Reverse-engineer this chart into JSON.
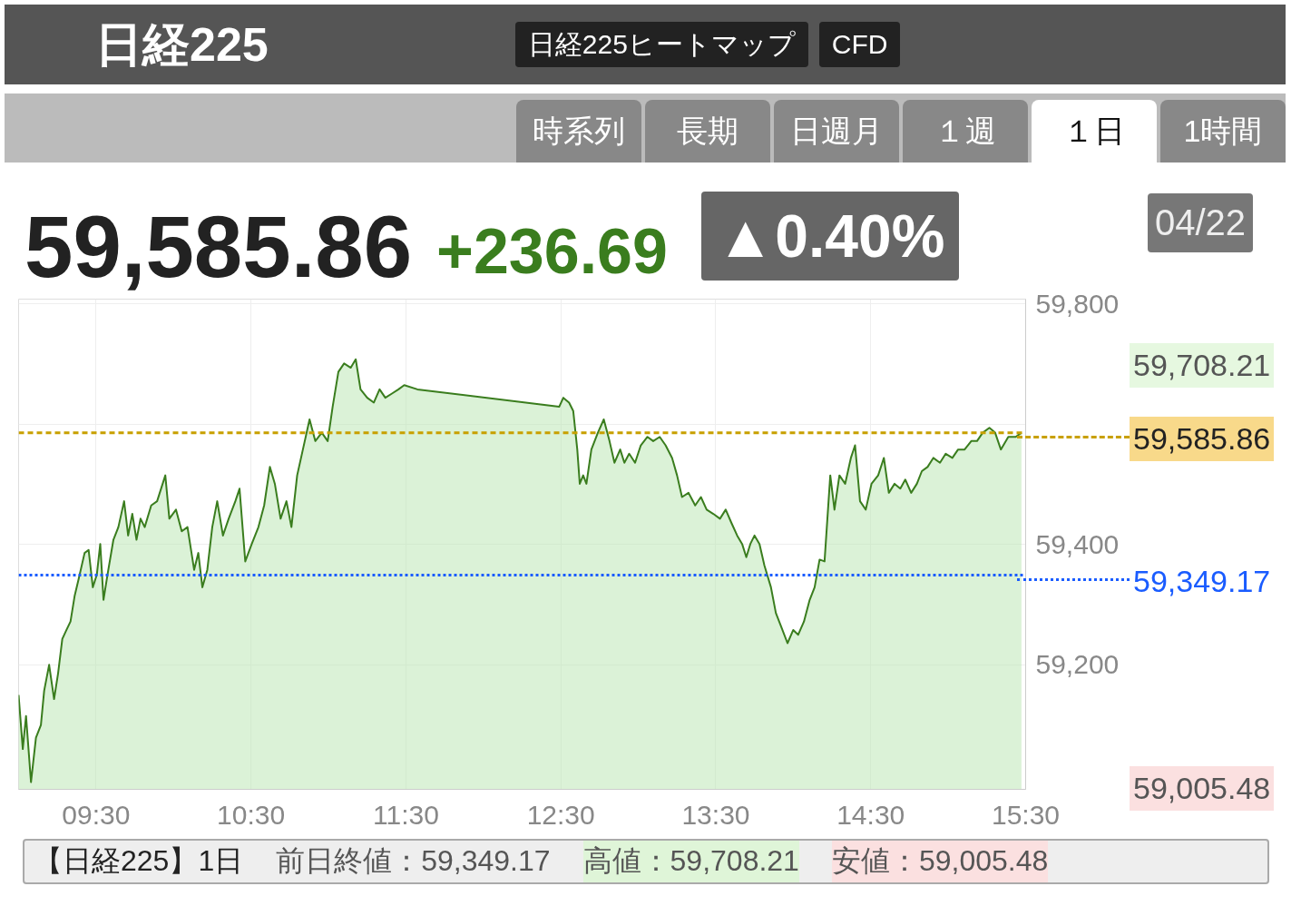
{
  "chart_data": {
    "type": "area",
    "title": "日経225",
    "annotations": [
      "日経225ヒートマップ",
      "CFD",
      "時系列",
      "長期",
      "日週月",
      "１週",
      "１日",
      "1時間",
      "59,585.86",
      "+236.69",
      "▲0.40%",
      "04/22",
      "【日経225】1日",
      "前日終値：59,349.17",
      "高値：59,708.21",
      "安値：59,005.48",
      "59,708.21",
      "59,005.48"
    ],
    "series": [
      {
        "color": "#3a7d1e",
        "x": [
          9.0,
          9.027,
          9.048,
          9.08,
          9.112,
          9.144,
          9.165,
          9.197,
          9.229,
          9.255,
          9.282,
          9.309,
          9.335,
          9.362,
          9.388,
          9.426,
          9.452,
          9.479,
          9.505,
          9.527,
          9.548,
          9.574,
          9.612,
          9.644,
          9.681,
          9.707,
          9.734,
          9.761,
          9.787,
          9.814,
          9.856,
          9.894,
          9.947,
          9.973,
          10.016,
          10.053,
          10.09,
          10.133,
          10.16,
          10.186,
          10.218,
          10.25,
          10.282,
          10.319,
          10.356,
          10.399,
          10.426,
          10.463,
          10.505,
          10.548,
          10.585,
          10.622,
          10.654,
          10.691,
          10.729,
          10.761,
          10.798,
          10.835,
          10.878,
          10.915,
          10.957,
          10.995,
          11.027,
          11.064,
          11.101,
          11.144,
          11.176,
          11.207,
          11.25,
          11.293,
          11.33,
          11.367,
          11.41,
          11.452,
          11.489,
          11.574,
          12.489,
          12.516,
          12.553,
          12.58,
          12.606,
          12.622,
          12.644,
          12.665,
          12.697,
          12.739,
          12.777,
          12.814,
          12.846,
          12.883,
          12.91,
          12.941,
          12.979,
          13.016,
          13.059,
          13.096,
          13.138,
          13.176,
          13.218,
          13.25,
          13.282,
          13.324,
          13.367,
          13.404,
          13.441,
          13.484,
          13.527,
          13.564,
          13.601,
          13.638,
          13.67,
          13.697,
          13.723,
          13.75,
          13.782,
          13.814,
          13.856,
          13.888,
          13.92,
          13.963,
          14.0,
          14.032,
          14.069,
          14.106,
          14.138,
          14.17,
          14.202,
          14.239,
          14.266,
          14.298,
          14.335,
          14.372,
          14.399,
          14.431,
          14.468,
          14.505,
          14.548,
          14.585,
          14.617,
          14.654,
          14.691,
          14.723,
          14.761,
          14.798,
          14.83,
          14.867,
          14.904,
          14.947,
          14.984,
          15.027,
          15.064,
          15.106,
          15.149,
          15.186,
          15.223,
          15.266,
          15.303,
          15.34,
          15.388,
          15.436,
          15.473
        ],
        "values": [
          59150,
          59060,
          59115,
          59005,
          59079,
          59100,
          59157,
          59200,
          59143,
          59186,
          59243,
          59258,
          59272,
          59315,
          59343,
          59386,
          59391,
          59329,
          59350,
          59401,
          59308,
          59350,
          59408,
          59429,
          59472,
          59415,
          59451,
          59408,
          59443,
          59429,
          59465,
          59472,
          59515,
          59443,
          59458,
          59422,
          59429,
          59358,
          59386,
          59329,
          59358,
          59429,
          59472,
          59415,
          59443,
          59472,
          59493,
          59372,
          59401,
          59429,
          59465,
          59529,
          59501,
          59443,
          59472,
          59429,
          59515,
          59558,
          59608,
          59572,
          59586,
          59572,
          59629,
          59687,
          59701,
          59694,
          59708,
          59658,
          59644,
          59636,
          59658,
          59644,
          59651,
          59658,
          59665,
          59658,
          59629,
          59644,
          59636,
          59622,
          59558,
          59501,
          59515,
          59501,
          59558,
          59586,
          59608,
          59572,
          59536,
          59558,
          59536,
          59551,
          59536,
          59565,
          59579,
          59572,
          59579,
          59565,
          59544,
          59515,
          59479,
          59486,
          59465,
          59479,
          59458,
          59451,
          59443,
          59458,
          59436,
          59415,
          59401,
          59379,
          59401,
          59415,
          59401,
          59365,
          59329,
          59286,
          59265,
          59236,
          59258,
          59250,
          59272,
          59308,
          59329,
          59375,
          59372,
          59515,
          59458,
          59515,
          59501,
          59544,
          59565,
          59472,
          59458,
          59501,
          59515,
          59544,
          59486,
          59501,
          59493,
          59508,
          59486,
          59501,
          59522,
          59529,
          59544,
          59536,
          59551,
          59544,
          59558,
          59558,
          59572,
          59572,
          59586,
          59594,
          59586,
          59558,
          59579,
          59579,
          59586
        ]
      }
    ],
    "xlim": [
      9,
      15.5
    ],
    "xticks": [
      {
        "value": 9.5,
        "label": "09:30"
      },
      {
        "value": 10.5,
        "label": "10:30"
      },
      {
        "value": 11.5,
        "label": "11:30"
      },
      {
        "value": 12.5,
        "label": "12:30"
      },
      {
        "value": 13.5,
        "label": "13:30"
      },
      {
        "value": 14.5,
        "label": "14:30"
      },
      {
        "value": 15.5,
        "label": "15:30"
      }
    ],
    "ylim": [
      58993,
      59808
    ],
    "yticks": [
      {
        "value": 59200,
        "label": "59,200"
      },
      {
        "value": 59400,
        "label": "59,400"
      },
      {
        "value": 59600,
        "label": null
      },
      {
        "value": 59800,
        "label": "59,800"
      }
    ],
    "ref_lines": [
      {
        "axis": "y",
        "value": 59585.86,
        "label": "59,585.86",
        "color": "#c8a000",
        "line_style": "dashed"
      },
      {
        "axis": "y",
        "value": 59349.17,
        "label": "59,349.17",
        "color": "#1a5cff",
        "line_style": "dotted"
      }
    ],
    "grid": true,
    "marker": "none",
    "line_style": "solid",
    "legend": false
  }
}
